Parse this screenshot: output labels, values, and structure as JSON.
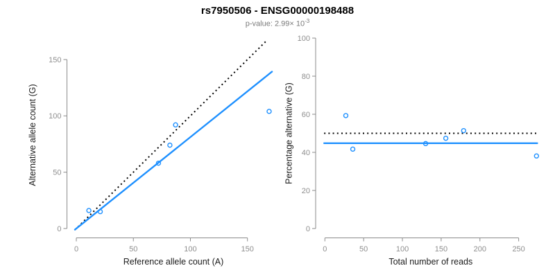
{
  "header": {
    "title": "rs7950506 - ENSG00000198488",
    "subtitle_prefix": "p-value: 2.99× 10",
    "subtitle_exponent": "-3"
  },
  "colors": {
    "accent_blue": "#1E90FF",
    "dotted_black": "#000000",
    "axis_line_gray": "#8a8a8a",
    "tick_label_gray": "#8e8e8e",
    "axis_title_black": "#1a1a1a",
    "subtitle_gray": "#7a7a7a",
    "background": "#ffffff"
  },
  "chart_data": [
    {
      "name": "allele-counts-scatter",
      "type": "scatter",
      "xlabel": "Reference allele count (A)",
      "ylabel": "Alternative allele count (G)",
      "xticks": [
        0,
        50,
        100,
        150
      ],
      "yticks": [
        0,
        50,
        100,
        150
      ],
      "xlim": [
        -1.2,
        171.5
      ],
      "ylim": [
        -1.5,
        167.5
      ],
      "grid": false,
      "legend": "none",
      "points": [
        {
          "x": 11,
          "y": 16
        },
        {
          "x": 21,
          "y": 15
        },
        {
          "x": 72,
          "y": 58
        },
        {
          "x": 82,
          "y": 74
        },
        {
          "x": 87,
          "y": 92
        },
        {
          "x": 169,
          "y": 104
        }
      ],
      "lines": [
        {
          "name": "identity-line",
          "kind": "slope",
          "slope": 1,
          "intercept": 0,
          "style": "dotted",
          "color": "#000000"
        },
        {
          "name": "fit-line",
          "kind": "slope",
          "slope": 0.812,
          "intercept": 0,
          "style": "solid",
          "color": "#1E90FF"
        }
      ]
    },
    {
      "name": "percentage-scatter",
      "type": "scatter",
      "xlabel": "Total number of reads",
      "ylabel": "Percentage alternative (G)",
      "xticks": [
        0,
        50,
        100,
        150,
        200,
        250
      ],
      "yticks": [
        0,
        20,
        40,
        60,
        80,
        100
      ],
      "xlim": [
        -1,
        274
      ],
      "ylim": [
        0,
        100
      ],
      "grid": false,
      "legend": "none",
      "points": [
        {
          "x": 27,
          "y": 59.3
        },
        {
          "x": 36,
          "y": 41.7
        },
        {
          "x": 130,
          "y": 44.6
        },
        {
          "x": 156,
          "y": 47.4
        },
        {
          "x": 179,
          "y": 51.4
        },
        {
          "x": 273,
          "y": 38.1
        }
      ],
      "lines": [
        {
          "name": "expected-line",
          "kind": "hline",
          "y": 50,
          "style": "dotted",
          "color": "#000000"
        },
        {
          "name": "fit-line",
          "kind": "hline",
          "y": 44.8,
          "style": "solid",
          "color": "#1E90FF"
        }
      ]
    }
  ]
}
